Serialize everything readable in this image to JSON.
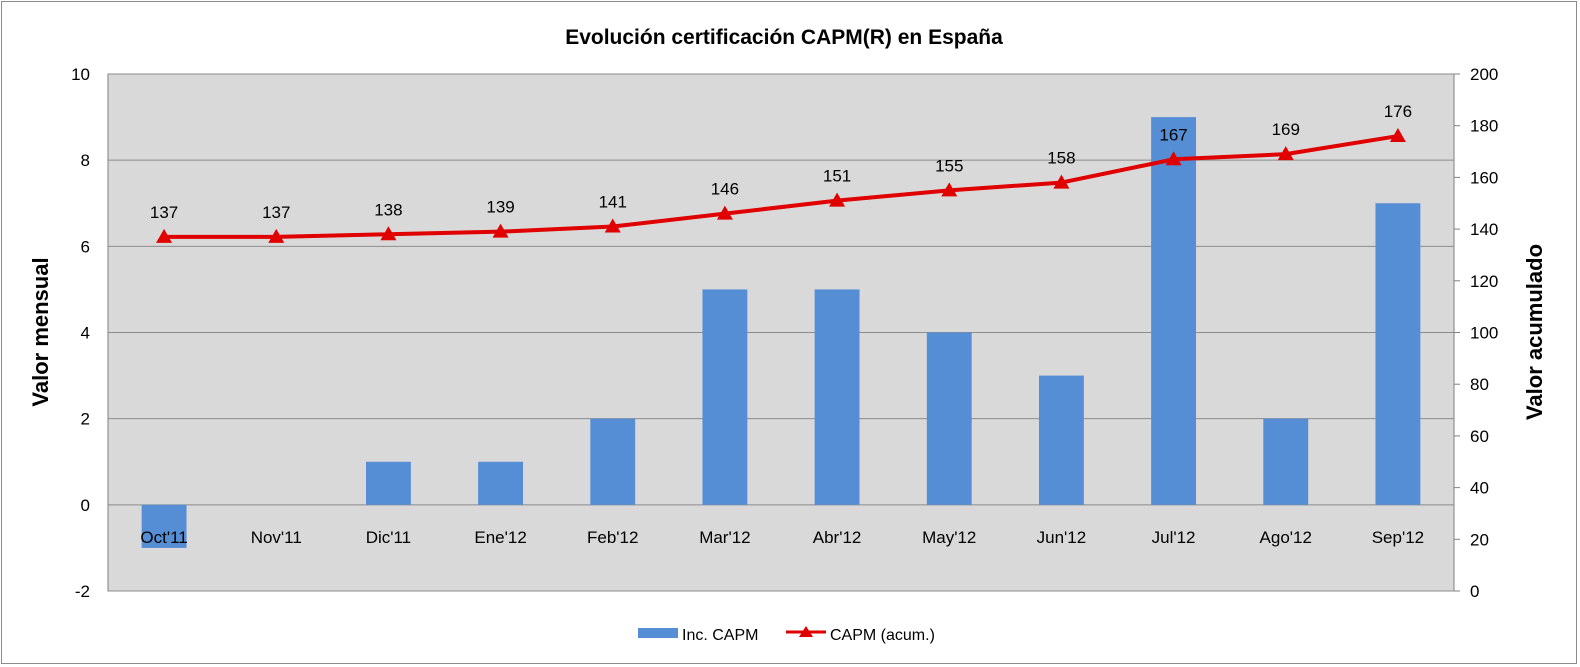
{
  "chart_data": {
    "type": "bar",
    "title": "Evolución certificación CAPM(R) en España",
    "categories": [
      "Oct'11",
      "Nov'11",
      "Dic'11",
      "Ene'12",
      "Feb'12",
      "Mar'12",
      "Abr'12",
      "May'12",
      "Jun'12",
      "Jul'12",
      "Ago'12",
      "Sep'12"
    ],
    "series": [
      {
        "name": "Inc. CAPM",
        "type": "bar",
        "axis": "left",
        "color": "#558ed5",
        "values": [
          -1,
          0,
          1,
          1,
          2,
          5,
          5,
          4,
          3,
          9,
          2,
          7
        ]
      },
      {
        "name": "CAPM (acum.)",
        "type": "line",
        "axis": "right",
        "marker": "triangle",
        "color": "#e00000",
        "values": [
          137,
          137,
          138,
          139,
          141,
          146,
          151,
          155,
          158,
          167,
          169,
          176
        ]
      }
    ],
    "ylabel": "Valor mensual",
    "ylabel_right": "Valor acumulado",
    "ylim": [
      -2,
      10
    ],
    "yticks": [
      -2,
      0,
      2,
      4,
      6,
      8,
      10
    ],
    "ylim_right": [
      0,
      200
    ],
    "yticks_right": [
      0,
      20,
      40,
      60,
      80,
      100,
      120,
      140,
      160,
      180,
      200
    ],
    "grid": true,
    "legend": "bottom",
    "plot_background": "#d9d9d9"
  }
}
